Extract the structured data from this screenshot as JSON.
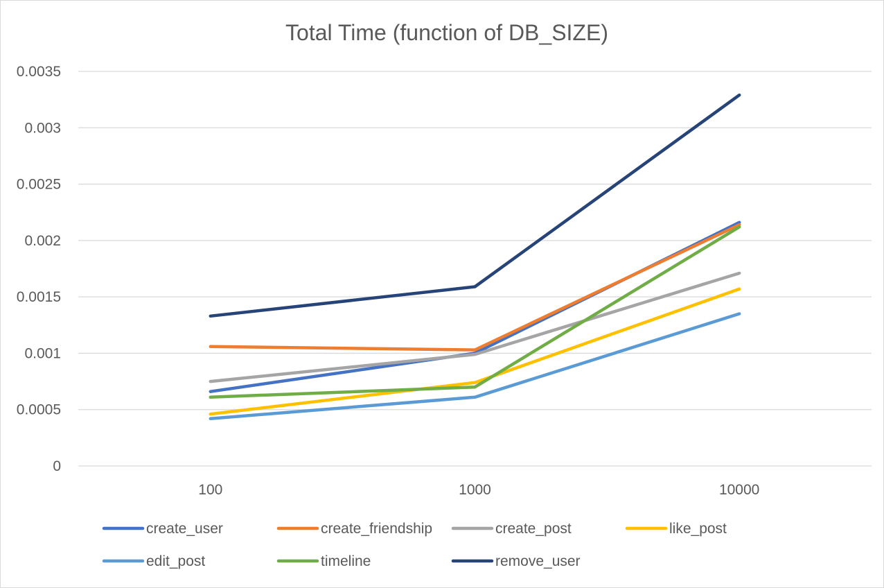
{
  "chart_data": {
    "type": "line",
    "title": "Total Time (function of DB_SIZE)",
    "xlabel": "",
    "ylabel": "",
    "categories": [
      "100",
      "1000",
      "10000"
    ],
    "ylim": [
      0,
      0.0035
    ],
    "yticks": [
      "0",
      "0.0005",
      "0.001",
      "0.0015",
      "0.002",
      "0.0025",
      "0.003",
      "0.0035"
    ],
    "grid": true,
    "legend_position": "bottom",
    "series": [
      {
        "name": "create_user",
        "color": "#4472C4",
        "values": [
          0.00066,
          0.001,
          0.00216
        ]
      },
      {
        "name": "create_friendship",
        "color": "#ED7D31",
        "values": [
          0.00106,
          0.00103,
          0.00214
        ]
      },
      {
        "name": "create_post",
        "color": "#A5A5A5",
        "values": [
          0.00075,
          0.00099,
          0.00171
        ]
      },
      {
        "name": "like_post",
        "color": "#FFC000",
        "values": [
          0.00046,
          0.00074,
          0.00157
        ]
      },
      {
        "name": "edit_post",
        "color": "#5B9BD5",
        "values": [
          0.00042,
          0.00061,
          0.00135
        ]
      },
      {
        "name": "timeline",
        "color": "#70AD47",
        "values": [
          0.00061,
          0.0007,
          0.00212
        ]
      },
      {
        "name": "remove_user",
        "color": "#264478",
        "values": [
          0.00133,
          0.00159,
          0.00329
        ]
      }
    ]
  }
}
